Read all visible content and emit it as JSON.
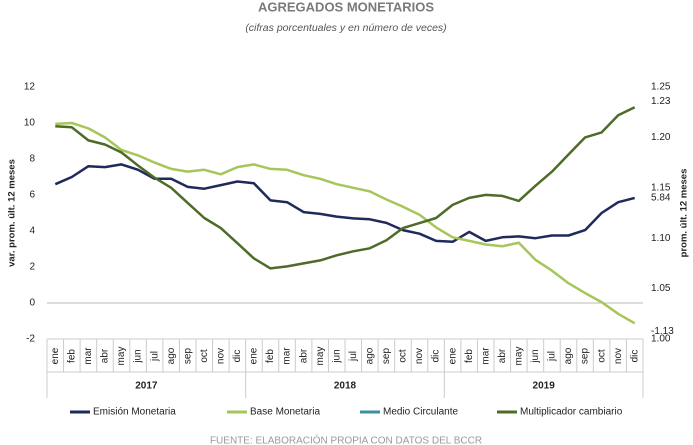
{
  "chart_data": {
    "type": "line",
    "title": "AGREGADOS MONETARIOS",
    "subtitle": "(cifras porcentuales y en número de veces)",
    "y_label": "var. prom. últ. 12 meses",
    "y2_label": "prom. últ. 12 meses",
    "source": "FUENTE: ELABORACIÓN PROPIA CON DATOS DEL BCCR",
    "categories": [
      "ene",
      "feb",
      "mar",
      "abr",
      "may",
      "jun",
      "jul",
      "ago",
      "sep",
      "oct",
      "nov",
      "dic",
      "ene",
      "feb",
      "mar",
      "abr",
      "may",
      "jun",
      "jul",
      "ago",
      "sep",
      "oct",
      "nov",
      "dic",
      "ene",
      "feb",
      "mar",
      "abr",
      "may",
      "jun",
      "jul",
      "ago",
      "sep",
      "oct",
      "nov",
      "dic"
    ],
    "years": [
      "2017",
      "2018",
      "2019"
    ],
    "ylim": [
      -2,
      12
    ],
    "yticks": [
      -2,
      0,
      2,
      4,
      6,
      8,
      10,
      12
    ],
    "y2lim": [
      1.0,
      1.25
    ],
    "y2ticks": [
      {
        "value": 1.0,
        "label": "1.00"
      },
      1.05,
      {
        "value": 1.1,
        "label": "1.10"
      },
      1.15,
      {
        "value": 1.2,
        "label": "1.20"
      },
      1.25
    ],
    "series": [
      {
        "name": "Emisión Monetaria",
        "color": "#1f2a5a",
        "values": [
          6.6,
          7.0,
          7.6,
          7.55,
          7.7,
          7.4,
          6.9,
          6.9,
          6.45,
          6.35,
          6.55,
          6.75,
          6.65,
          5.7,
          5.6,
          5.05,
          4.95,
          4.8,
          4.7,
          4.65,
          4.45,
          4.05,
          3.85,
          3.45,
          3.4,
          3.95,
          3.45,
          3.65,
          3.7,
          3.6,
          3.75,
          3.75,
          4.05,
          5.0,
          5.6,
          5.84
        ]
      },
      {
        "name": "Base Monetaria",
        "color": "#a6c65a",
        "values": [
          9.95,
          10.0,
          9.7,
          9.2,
          8.5,
          8.2,
          7.8,
          7.45,
          7.3,
          7.4,
          7.15,
          7.55,
          7.7,
          7.45,
          7.4,
          7.1,
          6.9,
          6.6,
          6.4,
          6.2,
          5.75,
          5.35,
          4.9,
          4.2,
          3.65,
          3.45,
          3.25,
          3.15,
          3.35,
          2.4,
          1.8,
          1.1,
          0.55,
          0.05,
          -0.6,
          -1.13
        ]
      },
      {
        "name": "Medio Circulante",
        "color": "#3a8fa0",
        "values": [
          null,
          null,
          null,
          null,
          null,
          null,
          null,
          null,
          null,
          null,
          null,
          null,
          null,
          null,
          null,
          null,
          null,
          null,
          null,
          null,
          null,
          null,
          null,
          null,
          null,
          null,
          null,
          null,
          null,
          null,
          null,
          null,
          null,
          null,
          null,
          null
        ]
      },
      {
        "name": "Multiplicador cambiario",
        "color": "#4f6b2a",
        "axis": "y2",
        "values": [
          1.211,
          1.21,
          1.197,
          1.193,
          1.185,
          1.172,
          1.16,
          1.15,
          1.135,
          1.12,
          1.11,
          1.095,
          1.08,
          1.07,
          1.072,
          1.075,
          1.078,
          1.083,
          1.087,
          1.09,
          1.098,
          1.11,
          1.115,
          1.12,
          1.133,
          1.14,
          1.143,
          1.142,
          1.137,
          1.152,
          1.166,
          1.183,
          1.2,
          1.205,
          1.222,
          1.23
        ]
      }
    ]
  }
}
